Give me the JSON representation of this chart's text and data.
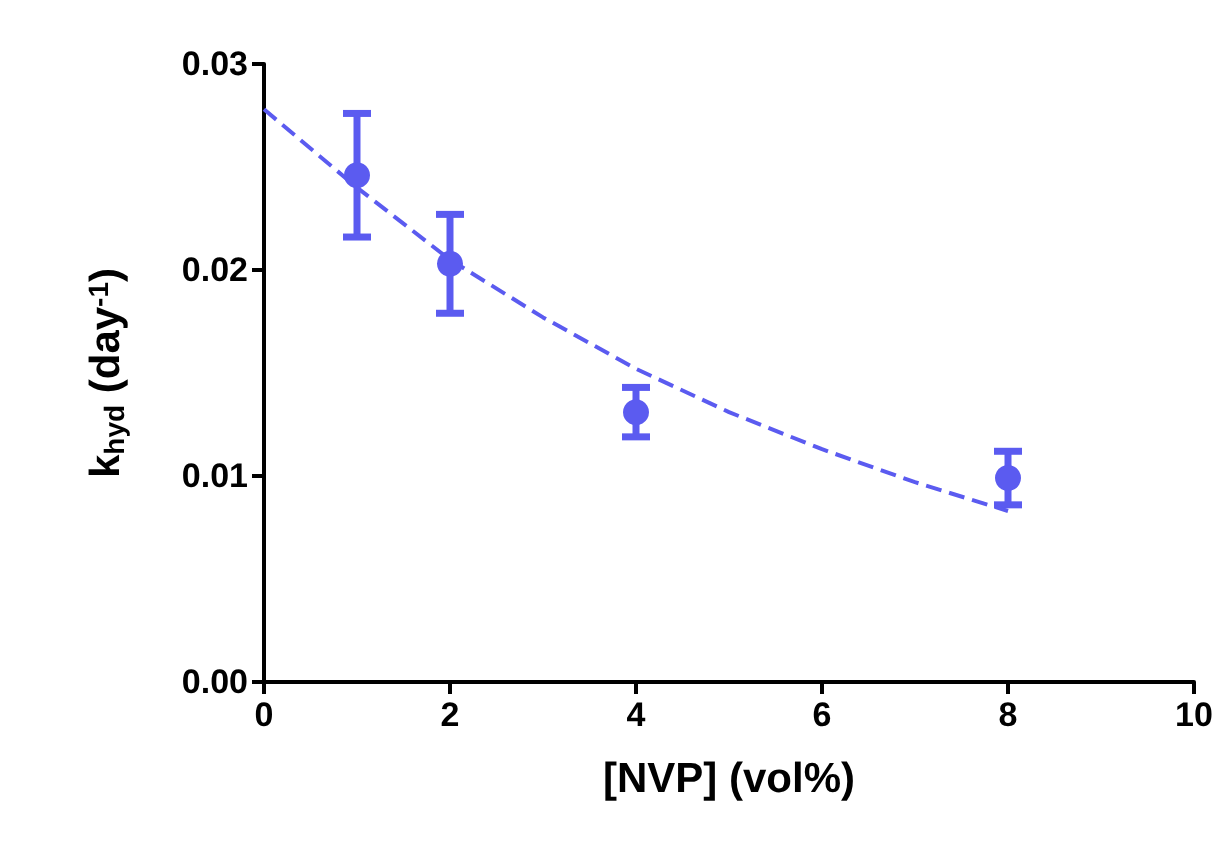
{
  "chart_data": {
    "type": "scatter",
    "xlabel": "[NVP] (vol%)",
    "ylabel": "k$_{hyd}$ (day$^{-1}$)",
    "xlim": [
      0,
      10
    ],
    "xticks": [
      0,
      2,
      4,
      6,
      8,
      10
    ],
    "ylim": [
      0,
      0.03
    ],
    "yticks": [
      {
        "value": 0,
        "label": "0.00"
      },
      {
        "value": 0.01,
        "label": "0.01"
      },
      {
        "value": 0.02,
        "label": "0.02"
      },
      {
        "value": 0.03,
        "label": "0.03"
      }
    ],
    "grid": false,
    "marker": "circle",
    "series": [
      {
        "color": "#5b5bf0",
        "x": [
          1,
          2,
          4,
          8
        ],
        "values": [
          0.0246,
          0.0203,
          0.0131,
          0.0099
        ],
        "errors": [
          0.003,
          0.0024,
          0.0012,
          0.0013
        ]
      },
      {
        "type": "line",
        "color": "#5b5bf0",
        "marker": "none",
        "line_style": "dashed",
        "x": [
          0,
          1,
          2,
          3,
          4,
          5,
          6,
          7,
          8
        ],
        "values": [
          0.0278,
          0.024,
          0.0205,
          0.0177,
          0.0152,
          0.0131,
          0.0113,
          0.0097,
          0.0083
        ]
      }
    ]
  }
}
